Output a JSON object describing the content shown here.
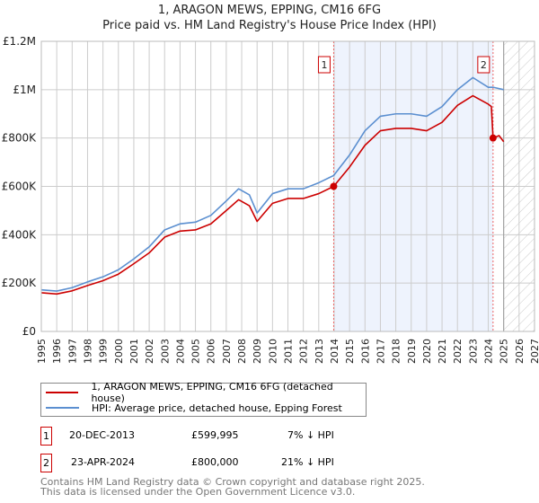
{
  "title": "1, ARAGON MEWS, EPPING, CM16 6FG",
  "subtitle": "Price paid vs. HM Land Registry's House Price Index (HPI)",
  "chart_data": {
    "type": "line",
    "title": "1, ARAGON MEWS, EPPING, CM16 6FG",
    "subtitle": "Price paid vs. HM Land Registry's House Price Index (HPI)",
    "xlim": [
      1995,
      2027
    ],
    "ylim": [
      0,
      1200000
    ],
    "x_ticks": [
      "1995",
      "1996",
      "1997",
      "1998",
      "1999",
      "2000",
      "2001",
      "2002",
      "2003",
      "2004",
      "2005",
      "2006",
      "2007",
      "2008",
      "2009",
      "2010",
      "2011",
      "2012",
      "2013",
      "2014",
      "2015",
      "2016",
      "2017",
      "2018",
      "2019",
      "2020",
      "2021",
      "2022",
      "2023",
      "2024",
      "2025",
      "2026",
      "2027"
    ],
    "y_ticks": [
      {
        "v": 0,
        "label": "£0"
      },
      {
        "v": 200000,
        "label": "£200K"
      },
      {
        "v": 400000,
        "label": "£400K"
      },
      {
        "v": 600000,
        "label": "£600K"
      },
      {
        "v": 800000,
        "label": "£800K"
      },
      {
        "v": 1000000,
        "label": "£1M"
      },
      {
        "v": 1200000,
        "label": "£1.2M"
      }
    ],
    "grid": true,
    "series": [
      {
        "name": "1, ARAGON MEWS, EPPING, CM16 6FG (detached house)",
        "color": "#cc0000",
        "x": [
          1995,
          1996,
          1997,
          1998,
          1999,
          2000,
          2001,
          2002,
          2003,
          2004,
          2005,
          2006,
          2007,
          2007.8,
          2008.5,
          2009,
          2010,
          2011,
          2012,
          2013,
          2013.97,
          2015,
          2016,
          2017,
          2018,
          2019,
          2020,
          2021,
          2022,
          2023,
          2024,
          2024.2,
          2024.31,
          2024.7,
          2025
        ],
        "y": [
          160000,
          155000,
          168000,
          190000,
          210000,
          237000,
          280000,
          325000,
          390000,
          415000,
          420000,
          445000,
          500000,
          545000,
          520000,
          455000,
          530000,
          550000,
          550000,
          570000,
          599995,
          680000,
          770000,
          830000,
          840000,
          840000,
          830000,
          865000,
          935000,
          975000,
          940000,
          930000,
          800000,
          810000,
          785000
        ]
      },
      {
        "name": "HPI: Average price, detached house, Epping Forest",
        "color": "#5b8fd0",
        "x": [
          1995,
          1996,
          1997,
          1998,
          1999,
          2000,
          2001,
          2002,
          2003,
          2004,
          2005,
          2006,
          2007,
          2007.8,
          2008.5,
          2009,
          2010,
          2011,
          2012,
          2013,
          2013.97,
          2015,
          2016,
          2017,
          2018,
          2019,
          2020,
          2021,
          2022,
          2023,
          2024,
          2024.31,
          2025
        ],
        "y": [
          172000,
          167000,
          181000,
          205000,
          226000,
          255000,
          300000,
          350000,
          420000,
          445000,
          452000,
          480000,
          540000,
          590000,
          565000,
          490000,
          570000,
          590000,
          590000,
          615000,
          645000,
          730000,
          830000,
          890000,
          900000,
          900000,
          890000,
          930000,
          1000000,
          1050000,
          1010000,
          1010000,
          1000000
        ]
      }
    ],
    "sales": [
      {
        "label": "1",
        "x": 2013.97,
        "y": 599995
      },
      {
        "label": "2",
        "x": 2024.31,
        "y": 800000
      }
    ],
    "forecast_start": 2025,
    "legend": "below"
  },
  "legend": {
    "items": [
      {
        "label": "1, ARAGON MEWS, EPPING, CM16 6FG (detached house)",
        "color": "#cc0000"
      },
      {
        "label": "HPI: Average price, detached house, Epping Forest",
        "color": "#5b8fd0"
      }
    ]
  },
  "transactions": [
    {
      "num": "1",
      "date": "20-DEC-2013",
      "price": "£599,995",
      "hpi": "7% ↓ HPI"
    },
    {
      "num": "2",
      "date": "23-APR-2024",
      "price": "£800,000",
      "hpi": "21% ↓ HPI"
    }
  ],
  "footer": {
    "line1": "Contains HM Land Registry data © Crown copyright and database right 2025.",
    "line2": "This data is licensed under the Open Government Licence v3.0."
  }
}
